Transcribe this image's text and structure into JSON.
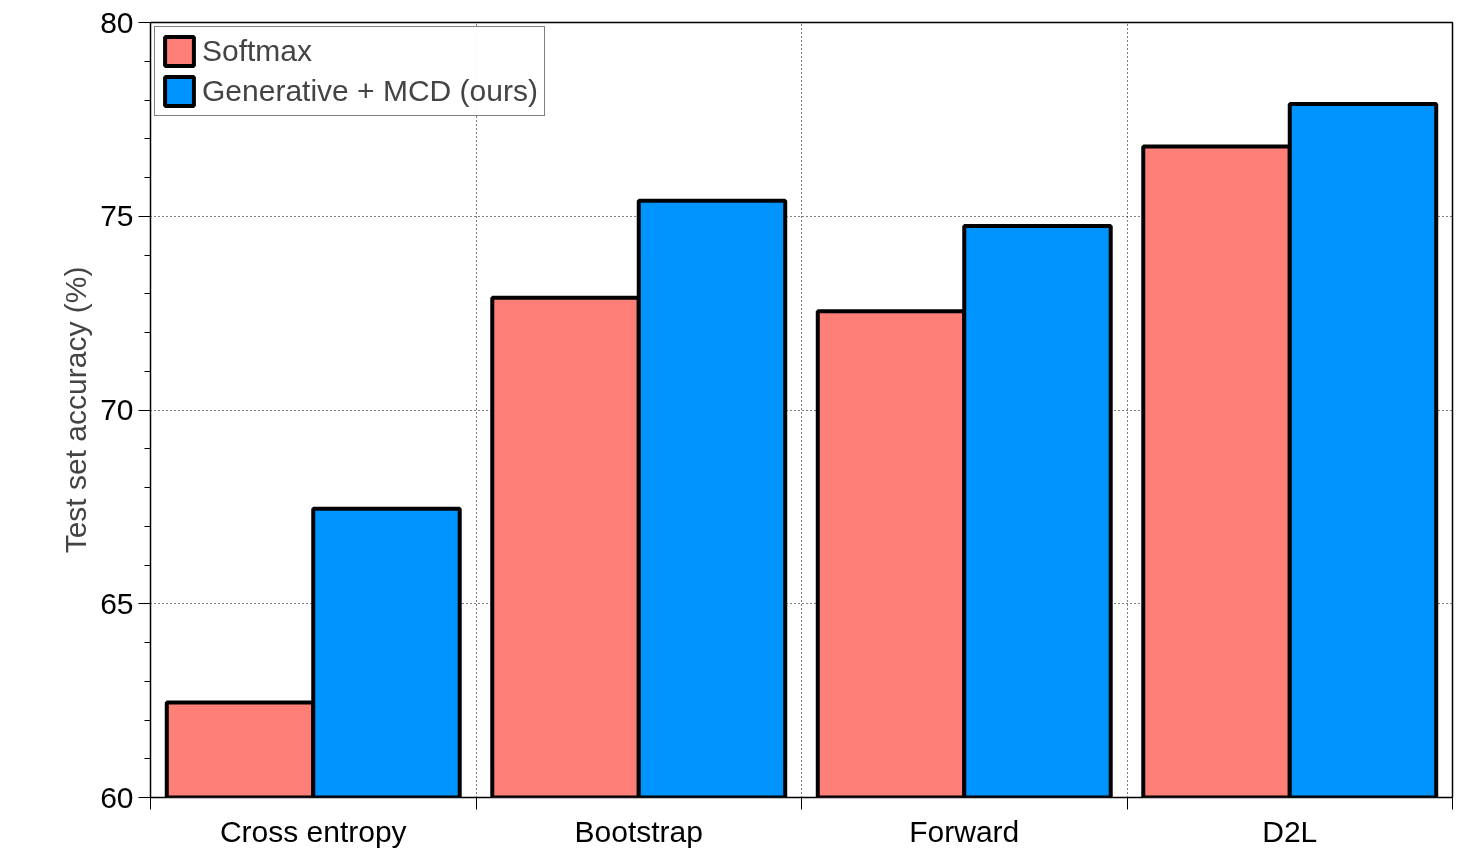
{
  "chart_data": {
    "type": "bar",
    "ylabel": "Test set accuracy (%)",
    "categories": [
      "Cross entropy",
      "Bootstrap",
      "Forward",
      "D2L"
    ],
    "series": [
      {
        "name": "Softmax",
        "color": "#fe7f78",
        "values": [
          62.45,
          72.9,
          72.55,
          76.8
        ]
      },
      {
        "name": "Generative + MCD (ours)",
        "color": "#0094ff",
        "values": [
          67.45,
          75.4,
          74.75,
          77.9
        ]
      }
    ],
    "ylim": [
      60,
      80
    ],
    "yticks": [
      60,
      65,
      70,
      75,
      80
    ],
    "grid": true,
    "legend": "top left"
  }
}
